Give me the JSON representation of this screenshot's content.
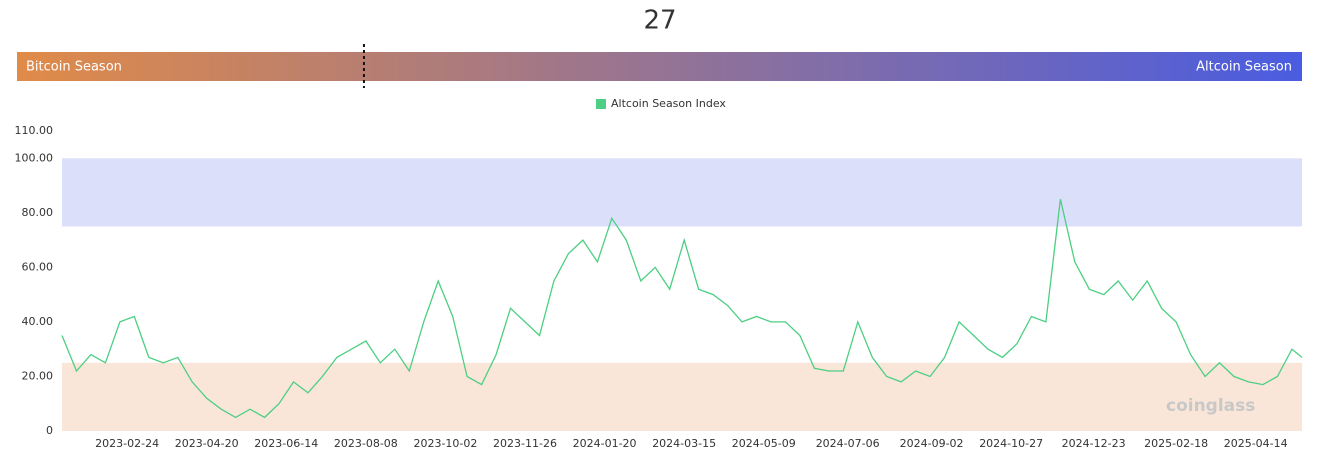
{
  "chart_data": {
    "type": "line",
    "current_value": 27,
    "gauge": {
      "left_label": "Bitcoin Season",
      "right_label": "Altcoin Season",
      "lim": [
        0,
        100
      ],
      "colors": [
        "#e08b48",
        "#4a5ce0"
      ]
    },
    "x": [
      "2023-01-10",
      "2023-01-20",
      "2023-01-30",
      "2023-02-09",
      "2023-02-19",
      "2023-03-01",
      "2023-03-11",
      "2023-03-21",
      "2023-03-31",
      "2023-04-10",
      "2023-04-20",
      "2023-04-30",
      "2023-05-10",
      "2023-05-20",
      "2023-05-30",
      "2023-06-09",
      "2023-06-19",
      "2023-06-29",
      "2023-07-09",
      "2023-07-19",
      "2023-07-29",
      "2023-08-08",
      "2023-08-18",
      "2023-08-28",
      "2023-09-07",
      "2023-09-17",
      "2023-09-27",
      "2023-10-07",
      "2023-10-17",
      "2023-10-27",
      "2023-11-06",
      "2023-11-16",
      "2023-11-26",
      "2023-12-06",
      "2023-12-16",
      "2023-12-26",
      "2024-01-05",
      "2024-01-15",
      "2024-01-25",
      "2024-02-04",
      "2024-02-14",
      "2024-02-24",
      "2024-03-05",
      "2024-03-15",
      "2024-03-25",
      "2024-04-04",
      "2024-04-14",
      "2024-04-24",
      "2024-05-04",
      "2024-05-14",
      "2024-05-24",
      "2024-06-03",
      "2024-06-13",
      "2024-06-23",
      "2024-07-03",
      "2024-07-13",
      "2024-07-23",
      "2024-08-02",
      "2024-08-12",
      "2024-08-22",
      "2024-09-01",
      "2024-09-11",
      "2024-09-21",
      "2024-10-01",
      "2024-10-11",
      "2024-10-21",
      "2024-10-31",
      "2024-11-10",
      "2024-11-20",
      "2024-11-30",
      "2024-12-10",
      "2024-12-20",
      "2024-12-30",
      "2025-01-09",
      "2025-01-19",
      "2025-01-29",
      "2025-02-08",
      "2025-02-18",
      "2025-02-28",
      "2025-03-10",
      "2025-03-20",
      "2025-03-30",
      "2025-04-09",
      "2025-04-19",
      "2025-04-29",
      "2025-05-09",
      "2025-05-16"
    ],
    "series": [
      {
        "name": "Altcoin Season Index",
        "color": "#4ccf82",
        "values": [
          35,
          22,
          28,
          25,
          40,
          42,
          27,
          25,
          27,
          18,
          12,
          8,
          5,
          8,
          5,
          10,
          18,
          14,
          20,
          27,
          30,
          33,
          25,
          30,
          22,
          40,
          55,
          42,
          20,
          17,
          28,
          45,
          40,
          35,
          55,
          65,
          70,
          62,
          78,
          70,
          55,
          60,
          52,
          70,
          52,
          50,
          46,
          40,
          42,
          40,
          40,
          35,
          23,
          22,
          22,
          40,
          27,
          20,
          18,
          22,
          20,
          27,
          40,
          35,
          30,
          27,
          32,
          42,
          40,
          85,
          62,
          52,
          50,
          55,
          48,
          55,
          45,
          40,
          28,
          20,
          25,
          20,
          18,
          17,
          20,
          30,
          27
        ]
      }
    ],
    "xlim": [
      "2023-01-10",
      "2025-05-16"
    ],
    "xticks": [
      "2023-02-24",
      "2023-04-20",
      "2023-06-14",
      "2023-08-08",
      "2023-10-02",
      "2023-11-26",
      "2024-01-20",
      "2024-03-15",
      "2024-05-09",
      "2024-07-06",
      "2024-09-02",
      "2024-10-27",
      "2024-12-23",
      "2025-02-18",
      "2025-04-14"
    ],
    "ylim": [
      0,
      110
    ],
    "yticks": [
      0,
      {
        "value": 20,
        "label": "20.00"
      },
      {
        "value": 40,
        "label": "40.00"
      },
      {
        "value": 60,
        "label": "60.00"
      },
      {
        "value": 80,
        "label": "80.00"
      },
      {
        "value": 100,
        "label": "100.00"
      },
      {
        "value": 110,
        "label": "110.00"
      }
    ],
    "bands": [
      {
        "from": 75,
        "to": 100,
        "color": "#dcdffa"
      },
      {
        "from": 0,
        "to": 25,
        "color": "#f9e6d9"
      }
    ],
    "watermark": "coinglass"
  }
}
